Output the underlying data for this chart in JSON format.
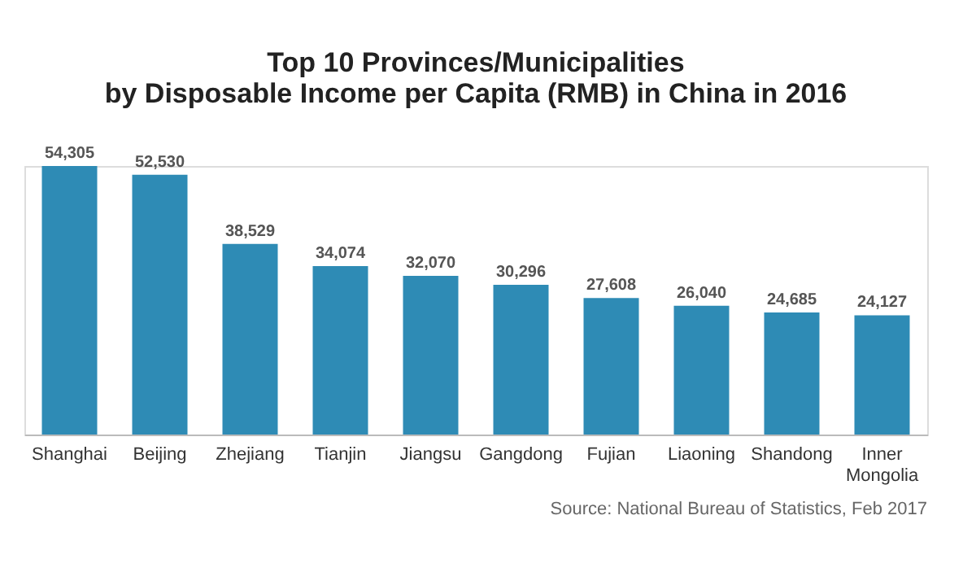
{
  "chart_data": {
    "type": "bar",
    "title": "Top 10 Provinces/Municipalities\nby Disposable Income per Capita (RMB) in China in 2016",
    "categories": [
      "Shanghai",
      "Beijing",
      "Zhejiang",
      "Tianjin",
      "Jiangsu",
      "Gangdong",
      "Fujian",
      "Liaoning",
      "Shandong",
      "Inner Mongolia"
    ],
    "values": [
      54305,
      52530,
      38529,
      34074,
      32070,
      30296,
      27608,
      26040,
      24685,
      24127
    ],
    "value_labels": [
      "54,305",
      "52,530",
      "38,529",
      "34,074",
      "32,070",
      "30,296",
      "27,608",
      "26,040",
      "24,685",
      "24,127"
    ],
    "color": "#2e8bb5",
    "grid": false,
    "annotations": [
      "Source: National Bureau of Statistics, Feb 2017"
    ]
  }
}
